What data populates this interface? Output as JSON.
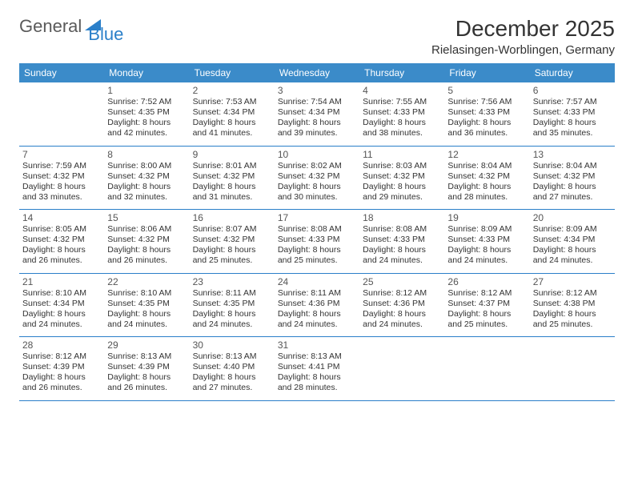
{
  "logo": {
    "part1": "General",
    "part2": "Blue"
  },
  "title": "December 2025",
  "location": "Rielasingen-Worblingen, Germany",
  "header_bg": "#3b8bc9",
  "divider_color": "#2a7fc9",
  "weekdays": [
    "Sunday",
    "Monday",
    "Tuesday",
    "Wednesday",
    "Thursday",
    "Friday",
    "Saturday"
  ],
  "weeks": [
    [
      null,
      {
        "n": "1",
        "sr": "7:52 AM",
        "ss": "4:35 PM",
        "dl": "8 hours and 42 minutes."
      },
      {
        "n": "2",
        "sr": "7:53 AM",
        "ss": "4:34 PM",
        "dl": "8 hours and 41 minutes."
      },
      {
        "n": "3",
        "sr": "7:54 AM",
        "ss": "4:34 PM",
        "dl": "8 hours and 39 minutes."
      },
      {
        "n": "4",
        "sr": "7:55 AM",
        "ss": "4:33 PM",
        "dl": "8 hours and 38 minutes."
      },
      {
        "n": "5",
        "sr": "7:56 AM",
        "ss": "4:33 PM",
        "dl": "8 hours and 36 minutes."
      },
      {
        "n": "6",
        "sr": "7:57 AM",
        "ss": "4:33 PM",
        "dl": "8 hours and 35 minutes."
      }
    ],
    [
      {
        "n": "7",
        "sr": "7:59 AM",
        "ss": "4:32 PM",
        "dl": "8 hours and 33 minutes."
      },
      {
        "n": "8",
        "sr": "8:00 AM",
        "ss": "4:32 PM",
        "dl": "8 hours and 32 minutes."
      },
      {
        "n": "9",
        "sr": "8:01 AM",
        "ss": "4:32 PM",
        "dl": "8 hours and 31 minutes."
      },
      {
        "n": "10",
        "sr": "8:02 AM",
        "ss": "4:32 PM",
        "dl": "8 hours and 30 minutes."
      },
      {
        "n": "11",
        "sr": "8:03 AM",
        "ss": "4:32 PM",
        "dl": "8 hours and 29 minutes."
      },
      {
        "n": "12",
        "sr": "8:04 AM",
        "ss": "4:32 PM",
        "dl": "8 hours and 28 minutes."
      },
      {
        "n": "13",
        "sr": "8:04 AM",
        "ss": "4:32 PM",
        "dl": "8 hours and 27 minutes."
      }
    ],
    [
      {
        "n": "14",
        "sr": "8:05 AM",
        "ss": "4:32 PM",
        "dl": "8 hours and 26 minutes."
      },
      {
        "n": "15",
        "sr": "8:06 AM",
        "ss": "4:32 PM",
        "dl": "8 hours and 26 minutes."
      },
      {
        "n": "16",
        "sr": "8:07 AM",
        "ss": "4:32 PM",
        "dl": "8 hours and 25 minutes."
      },
      {
        "n": "17",
        "sr": "8:08 AM",
        "ss": "4:33 PM",
        "dl": "8 hours and 25 minutes."
      },
      {
        "n": "18",
        "sr": "8:08 AM",
        "ss": "4:33 PM",
        "dl": "8 hours and 24 minutes."
      },
      {
        "n": "19",
        "sr": "8:09 AM",
        "ss": "4:33 PM",
        "dl": "8 hours and 24 minutes."
      },
      {
        "n": "20",
        "sr": "8:09 AM",
        "ss": "4:34 PM",
        "dl": "8 hours and 24 minutes."
      }
    ],
    [
      {
        "n": "21",
        "sr": "8:10 AM",
        "ss": "4:34 PM",
        "dl": "8 hours and 24 minutes."
      },
      {
        "n": "22",
        "sr": "8:10 AM",
        "ss": "4:35 PM",
        "dl": "8 hours and 24 minutes."
      },
      {
        "n": "23",
        "sr": "8:11 AM",
        "ss": "4:35 PM",
        "dl": "8 hours and 24 minutes."
      },
      {
        "n": "24",
        "sr": "8:11 AM",
        "ss": "4:36 PM",
        "dl": "8 hours and 24 minutes."
      },
      {
        "n": "25",
        "sr": "8:12 AM",
        "ss": "4:36 PM",
        "dl": "8 hours and 24 minutes."
      },
      {
        "n": "26",
        "sr": "8:12 AM",
        "ss": "4:37 PM",
        "dl": "8 hours and 25 minutes."
      },
      {
        "n": "27",
        "sr": "8:12 AM",
        "ss": "4:38 PM",
        "dl": "8 hours and 25 minutes."
      }
    ],
    [
      {
        "n": "28",
        "sr": "8:12 AM",
        "ss": "4:39 PM",
        "dl": "8 hours and 26 minutes."
      },
      {
        "n": "29",
        "sr": "8:13 AM",
        "ss": "4:39 PM",
        "dl": "8 hours and 26 minutes."
      },
      {
        "n": "30",
        "sr": "8:13 AM",
        "ss": "4:40 PM",
        "dl": "8 hours and 27 minutes."
      },
      {
        "n": "31",
        "sr": "8:13 AM",
        "ss": "4:41 PM",
        "dl": "8 hours and 28 minutes."
      },
      null,
      null,
      null
    ]
  ],
  "labels": {
    "sunrise": "Sunrise:",
    "sunset": "Sunset:",
    "daylight": "Daylight:"
  }
}
